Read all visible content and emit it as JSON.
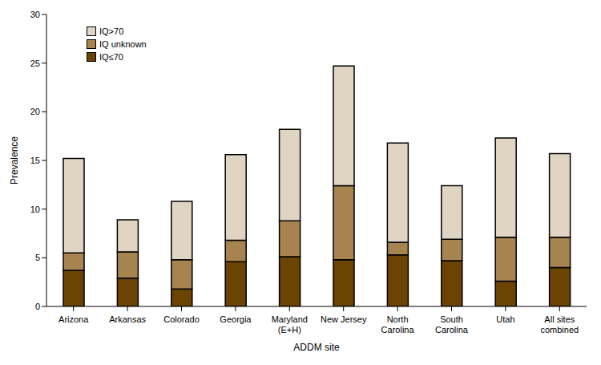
{
  "chart_data": {
    "type": "bar",
    "stacked": true,
    "x_label": "ADDM site",
    "y_label": "Prevalence",
    "categories": [
      "Arizona",
      "Arkansas",
      "Colorado",
      "Georgia",
      "Maryland (E+H)",
      "New Jersey",
      "North Carolina",
      "South Carolina",
      "Utah",
      "All sites combined"
    ],
    "series": [
      {
        "name": "IQ≤70",
        "color": "#6b4404",
        "values": [
          3.7,
          2.9,
          1.8,
          4.6,
          5.1,
          4.8,
          5.3,
          4.7,
          2.6,
          4.0
        ]
      },
      {
        "name": "IQ unknown",
        "color": "#a6834f",
        "values": [
          1.8,
          2.7,
          3.0,
          2.2,
          3.7,
          7.6,
          1.3,
          2.2,
          4.5,
          3.1
        ]
      },
      {
        "name": "IQ>70",
        "color": "#e0d4c3",
        "values": [
          9.7,
          3.3,
          6.0,
          8.8,
          9.4,
          12.3,
          10.2,
          5.5,
          10.2,
          8.6
        ]
      }
    ],
    "ylim": [
      0,
      30
    ],
    "yticks": [
      0,
      5,
      10,
      15,
      20,
      25,
      30
    ],
    "grid": false,
    "legend": "top-left"
  }
}
